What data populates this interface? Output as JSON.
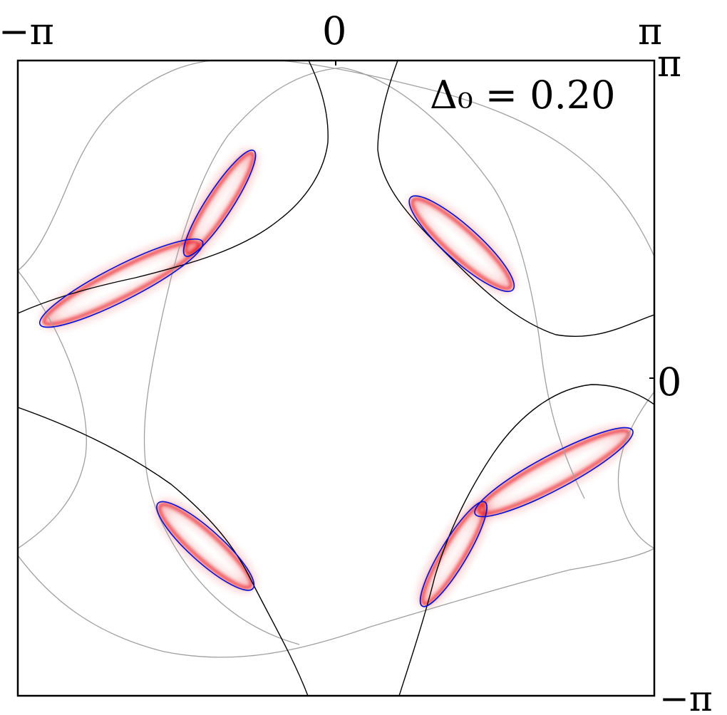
{
  "chart_data": {
    "type": "contour",
    "annotation": "Δ₀ = 0.20",
    "xlim": [
      -3.14159,
      3.14159
    ],
    "ylim": [
      -3.14159,
      3.14159
    ],
    "x_tick_labels": [
      "−π",
      "0",
      "π"
    ],
    "y_tick_labels": [
      "π",
      "0",
      "−π"
    ],
    "grid": false,
    "colors": {
      "intensity": "#e8141e",
      "outer_contour": "#a0a0a0",
      "black_contour": "#000000",
      "blue_contour": "#0010d8"
    },
    "series": [
      {
        "kind": "blue-lobe",
        "cx": -1.15,
        "cy": 1.73,
        "a": 0.62,
        "b": 0.13,
        "angle_deg": 57
      },
      {
        "kind": "blue-lobe",
        "cx": -2.12,
        "cy": 0.94,
        "a": 0.9,
        "b": 0.17,
        "angle_deg": 27
      },
      {
        "kind": "blue-lobe",
        "cx": 1.24,
        "cy": 1.33,
        "a": 0.68,
        "b": 0.17,
        "angle_deg": -42
      },
      {
        "kind": "blue-lobe",
        "cx": -1.29,
        "cy": -1.66,
        "a": 0.63,
        "b": 0.16,
        "angle_deg": -42
      },
      {
        "kind": "blue-lobe",
        "cx": 2.15,
        "cy": -0.93,
        "a": 0.88,
        "b": 0.17,
        "angle_deg": 28
      },
      {
        "kind": "blue-lobe",
        "cx": 1.16,
        "cy": -1.74,
        "a": 0.6,
        "b": 0.13,
        "angle_deg": 59
      }
    ]
  }
}
